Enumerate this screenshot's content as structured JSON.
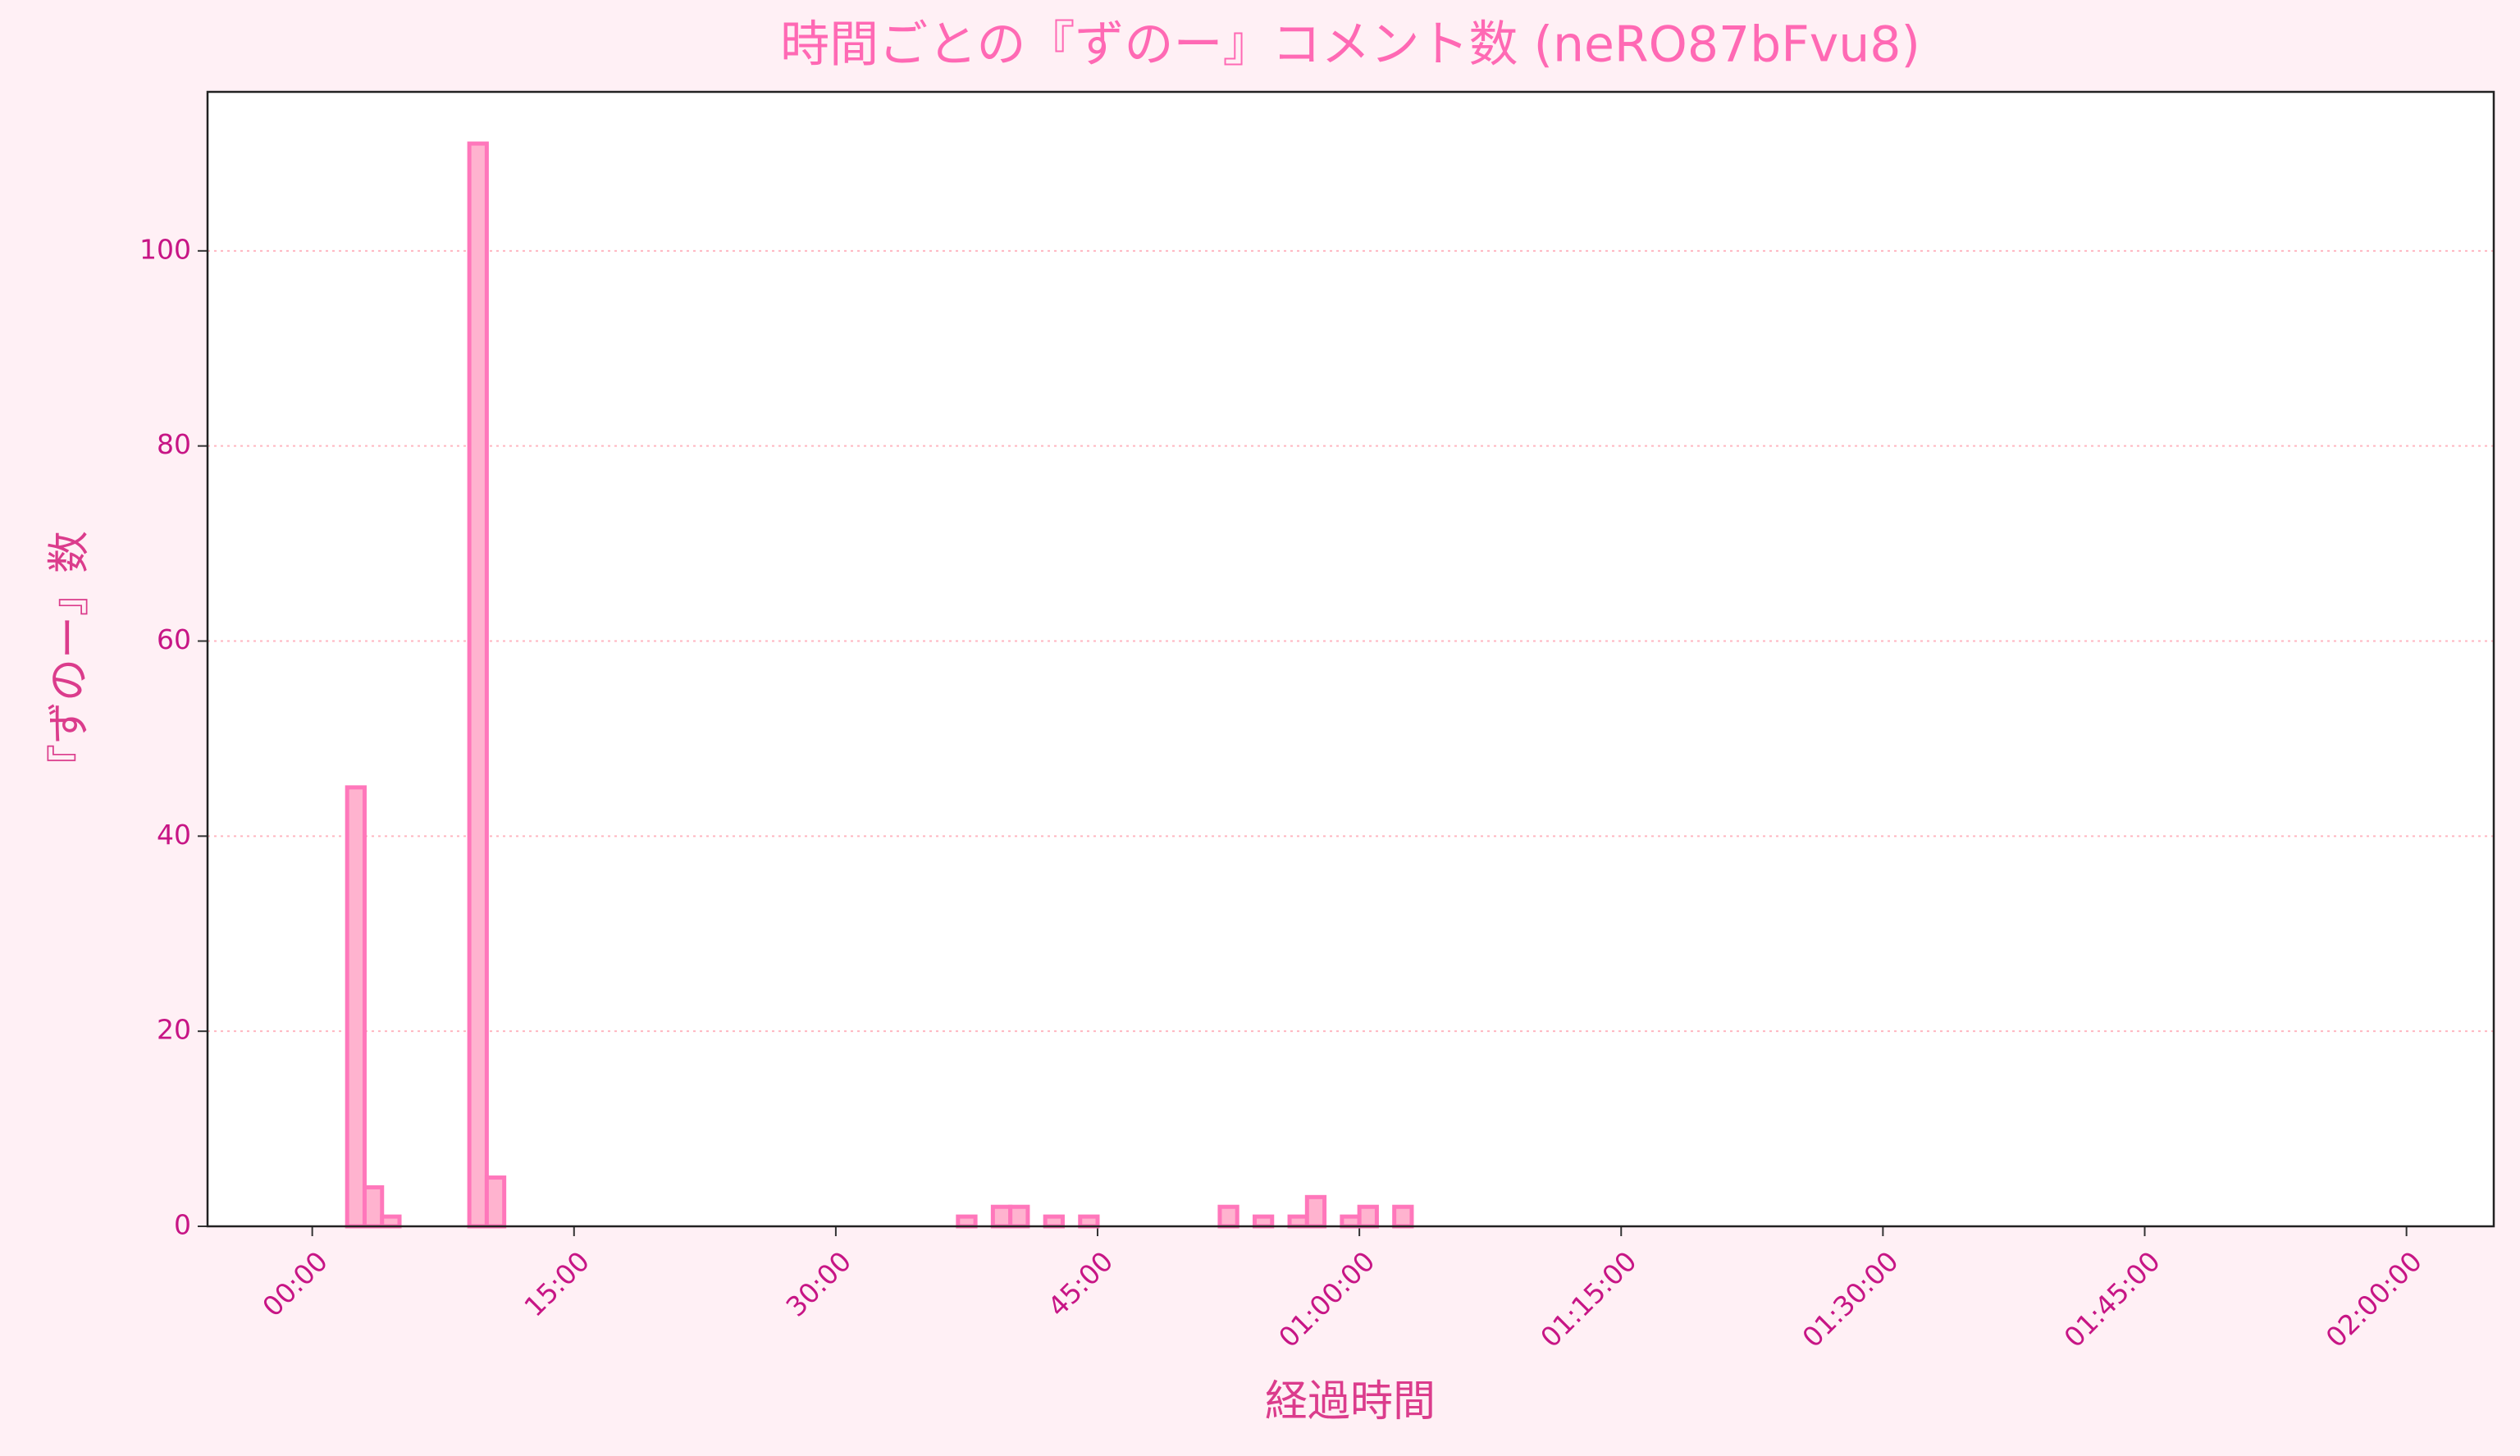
{
  "chart_data": {
    "type": "histogram",
    "title": "時間ごとの『ずのー』コメント数 (neRO87bFvu8)",
    "x_label": "経過時間",
    "y_label": "『ずのー』数",
    "bins": [
      0,
      1,
      2,
      3,
      4,
      5,
      6,
      7,
      8,
      9,
      10,
      11,
      12,
      13,
      14,
      15,
      16,
      17,
      18,
      19,
      20,
      21,
      22,
      23,
      24,
      25,
      26,
      27,
      28,
      29,
      30,
      31,
      32,
      33,
      34,
      35,
      36,
      37,
      38,
      39,
      40,
      41,
      42,
      43,
      44,
      45,
      46,
      47,
      48,
      49,
      50,
      51,
      52,
      53,
      54,
      55,
      56,
      57,
      58,
      59,
      60,
      61,
      62,
      63,
      64,
      65,
      66,
      67,
      68,
      69,
      70,
      71,
      72,
      73,
      74,
      75,
      76,
      77,
      78,
      79,
      80,
      81,
      82,
      83,
      84,
      85,
      86,
      87,
      88,
      89,
      90,
      91,
      92,
      93,
      94,
      95,
      96,
      97,
      98,
      99,
      100,
      101,
      102,
      103,
      104,
      105,
      106,
      107,
      108,
      109,
      110,
      111,
      112,
      113,
      114,
      115,
      116,
      117,
      118,
      119,
      120
    ],
    "values": [
      0,
      0,
      45,
      4,
      1,
      0,
      0,
      0,
      0,
      111,
      5,
      0,
      0,
      0,
      0,
      0,
      0,
      0,
      0,
      0,
      0,
      0,
      0,
      0,
      0,
      0,
      0,
      0,
      0,
      0,
      0,
      0,
      0,
      0,
      0,
      0,
      0,
      1,
      0,
      2,
      2,
      0,
      1,
      0,
      1,
      0,
      0,
      0,
      0,
      0,
      0,
      0,
      2,
      0,
      1,
      0,
      1,
      3,
      0,
      1,
      2,
      0,
      2,
      0,
      0,
      0,
      0,
      0,
      0,
      0,
      0,
      0,
      0,
      0,
      0,
      0,
      0,
      0,
      0,
      0,
      0,
      0,
      0,
      0,
      0,
      0,
      0,
      0,
      0,
      0,
      0,
      0,
      0,
      0,
      0,
      0,
      0,
      0,
      0,
      0,
      0,
      0,
      0,
      0,
      0,
      0,
      0,
      0,
      0,
      0,
      0,
      0,
      0,
      0,
      0,
      0,
      0,
      0,
      0,
      0
    ],
    "color": "#ffb3cf",
    "edge_color": "#ff77bb",
    "xlim": [
      -6,
      125
    ],
    "xticks": [
      {
        "value": 0,
        "label": "00:00"
      },
      {
        "value": 15,
        "label": "15:00"
      },
      {
        "value": 30,
        "label": "30:00"
      },
      {
        "value": 45,
        "label": "45:00"
      },
      {
        "value": 60,
        "label": "01:00:00"
      },
      {
        "value": 75,
        "label": "01:15:00"
      },
      {
        "value": 90,
        "label": "01:30:00"
      },
      {
        "value": 105,
        "label": "01:45:00"
      },
      {
        "value": 120,
        "label": "02:00:00"
      }
    ],
    "ylim": [
      0,
      116.3
    ],
    "yticks": [
      0,
      20,
      40,
      60,
      80,
      100
    ],
    "grid": true
  }
}
